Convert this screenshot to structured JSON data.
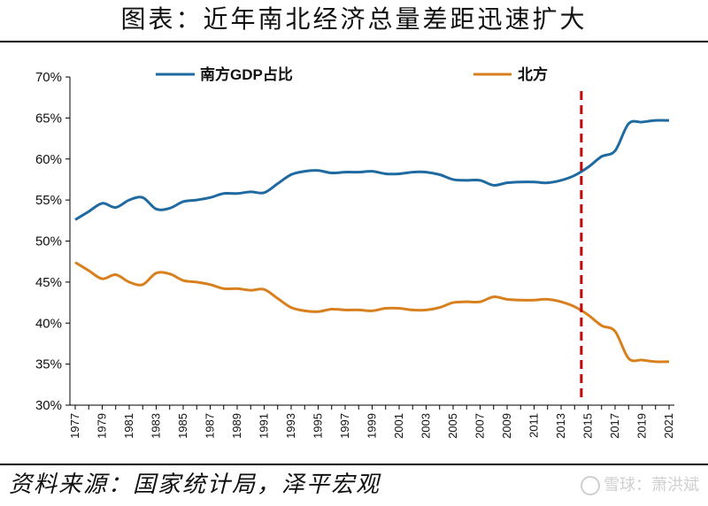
{
  "header": {
    "title": "图表：近年南北经济总量差距迅速扩大"
  },
  "footer": {
    "source": "资料来源：国家统计局，泽平宏观",
    "watermark": "雪球：萧洪斌"
  },
  "colors": {
    "south": "#1f6aa0",
    "north": "#d9801e",
    "divider": "#c00000",
    "axis": "#000000"
  },
  "chart_data": {
    "type": "line",
    "title": "",
    "xlabel": "",
    "ylabel": "",
    "ylim": [
      30,
      70
    ],
    "y_ticks": [
      "30%",
      "35%",
      "40%",
      "45%",
      "50%",
      "55%",
      "60%",
      "65%",
      "70%"
    ],
    "y_tick_values": [
      30,
      35,
      40,
      45,
      50,
      55,
      60,
      65,
      70
    ],
    "x": [
      1977,
      1978,
      1979,
      1980,
      1981,
      1982,
      1983,
      1984,
      1985,
      1986,
      1987,
      1988,
      1989,
      1990,
      1991,
      1992,
      1993,
      1994,
      1995,
      1996,
      1997,
      1998,
      1999,
      2000,
      2001,
      2002,
      2003,
      2004,
      2005,
      2006,
      2007,
      2008,
      2009,
      2010,
      2011,
      2012,
      2013,
      2014,
      2015,
      2016,
      2017,
      2018,
      2019,
      2020,
      2021
    ],
    "x_tick_labels": [
      "1977",
      "1979",
      "1981",
      "1983",
      "1985",
      "1987",
      "1989",
      "1991",
      "1993",
      "1995",
      "1997",
      "1999",
      "2001",
      "2003",
      "2005",
      "2007",
      "2009",
      "2011",
      "2013",
      "2015",
      "2017",
      "2019",
      "2021"
    ],
    "legend_position": "top",
    "grid": false,
    "vertical_marker": {
      "x": 2014.5,
      "style": "dashed"
    },
    "series": [
      {
        "name": "南方GDP占比",
        "values": [
          52.6,
          53.6,
          54.6,
          54.1,
          55.0,
          55.3,
          53.9,
          54.0,
          54.8,
          55.0,
          55.3,
          55.8,
          55.8,
          56.0,
          55.9,
          57.0,
          58.1,
          58.5,
          58.6,
          58.3,
          58.4,
          58.4,
          58.5,
          58.2,
          58.2,
          58.4,
          58.4,
          58.1,
          57.5,
          57.4,
          57.4,
          56.8,
          57.1,
          57.2,
          57.2,
          57.1,
          57.4,
          58.0,
          59.0,
          60.3,
          61.0,
          64.3,
          64.5,
          64.7,
          64.7
        ]
      },
      {
        "name": "北方",
        "values": [
          47.4,
          46.4,
          45.4,
          45.9,
          45.0,
          44.7,
          46.1,
          46.0,
          45.2,
          45.0,
          44.7,
          44.2,
          44.2,
          44.0,
          44.1,
          43.0,
          41.9,
          41.5,
          41.4,
          41.7,
          41.6,
          41.6,
          41.5,
          41.8,
          41.8,
          41.6,
          41.6,
          41.9,
          42.5,
          42.6,
          42.6,
          43.2,
          42.9,
          42.8,
          42.8,
          42.9,
          42.6,
          42.0,
          41.0,
          39.7,
          39.0,
          35.7,
          35.5,
          35.3,
          35.3
        ]
      }
    ]
  }
}
